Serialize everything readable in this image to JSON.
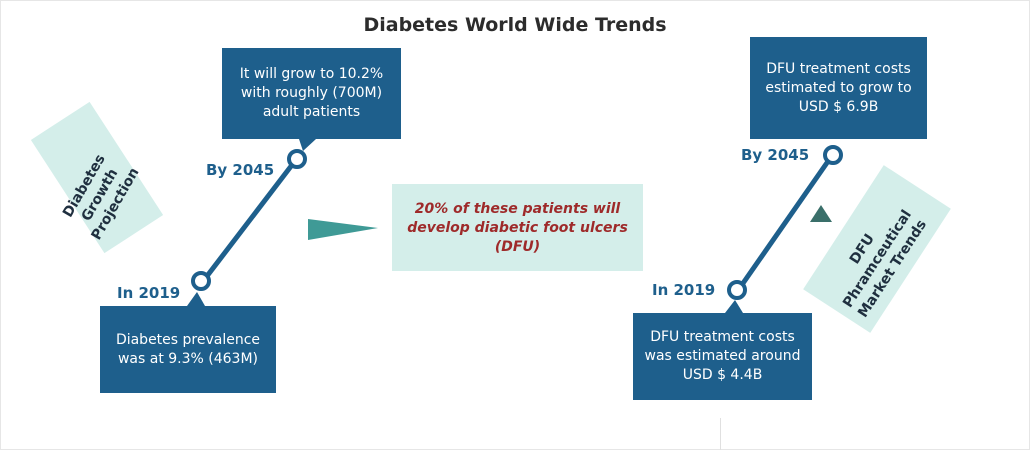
{
  "title": "Diabetes World Wide Trends",
  "left": {
    "section_label": "Diabetes Growth Projection",
    "year_start": "In 2019",
    "year_end": "By 2045",
    "box_2019": "Diabetes prevalence was at 9.3% (463M)",
    "box_2045": "It will grow to 10.2% with roughly (700M) adult patients"
  },
  "center": {
    "text": "20% of these patients will develop diabetic foot ulcers (DFU)"
  },
  "right": {
    "section_label": "DFU Phramceutical Market Trends",
    "year_start": "In 2019",
    "year_end": "By 2045",
    "box_2019": "DFU treatment costs was estimated around USD $ 4.4B",
    "box_2045": "DFU treatment costs estimated to grow to USD $ 6.9B"
  },
  "colors": {
    "navy": "#1e5f8c",
    "teal_light": "#d4eeea",
    "teal_arrow": "#3f9a96",
    "accent_red": "#9e2a2a"
  }
}
